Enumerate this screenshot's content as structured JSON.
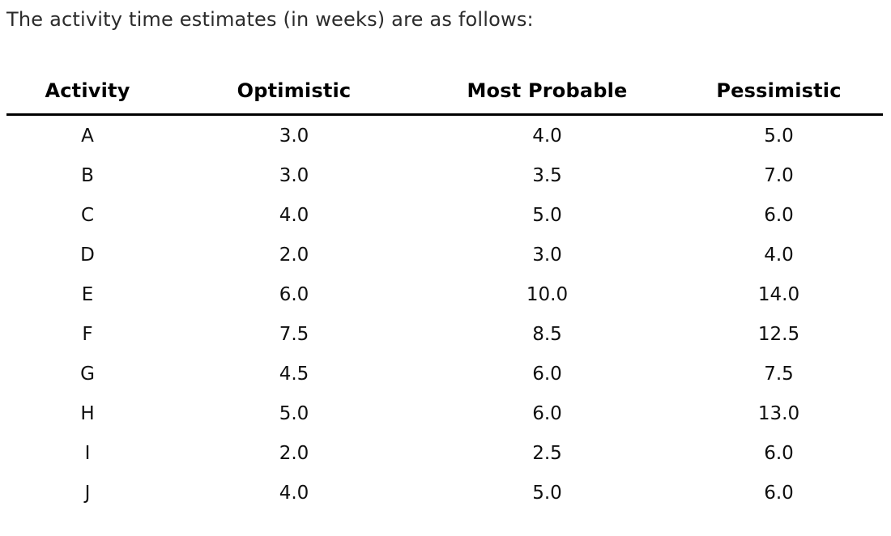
{
  "title": "The activity time estimates (in weeks) are as follows:",
  "table": {
    "columns": [
      "Activity",
      "Optimistic",
      "Most Probable",
      "Pessimistic"
    ],
    "rows": [
      [
        "A",
        "3.0",
        "4.0",
        "5.0"
      ],
      [
        "B",
        "3.0",
        "3.5",
        "7.0"
      ],
      [
        "C",
        "4.0",
        "5.0",
        "6.0"
      ],
      [
        "D",
        "2.0",
        "3.0",
        "4.0"
      ],
      [
        "E",
        "6.0",
        "10.0",
        "14.0"
      ],
      [
        "F",
        "7.5",
        "8.5",
        "12.5"
      ],
      [
        "G",
        "4.5",
        "6.0",
        "7.5"
      ],
      [
        "H",
        "5.0",
        "6.0",
        "13.0"
      ],
      [
        "I",
        "2.0",
        "2.5",
        "6.0"
      ],
      [
        "J",
        "4.0",
        "5.0",
        "6.0"
      ]
    ]
  },
  "colors": {
    "background": "#ffffff",
    "title_text": "#2b2b2b",
    "table_text": "#0f0f0f",
    "header_text": "#000000",
    "header_rule": "#000000"
  }
}
